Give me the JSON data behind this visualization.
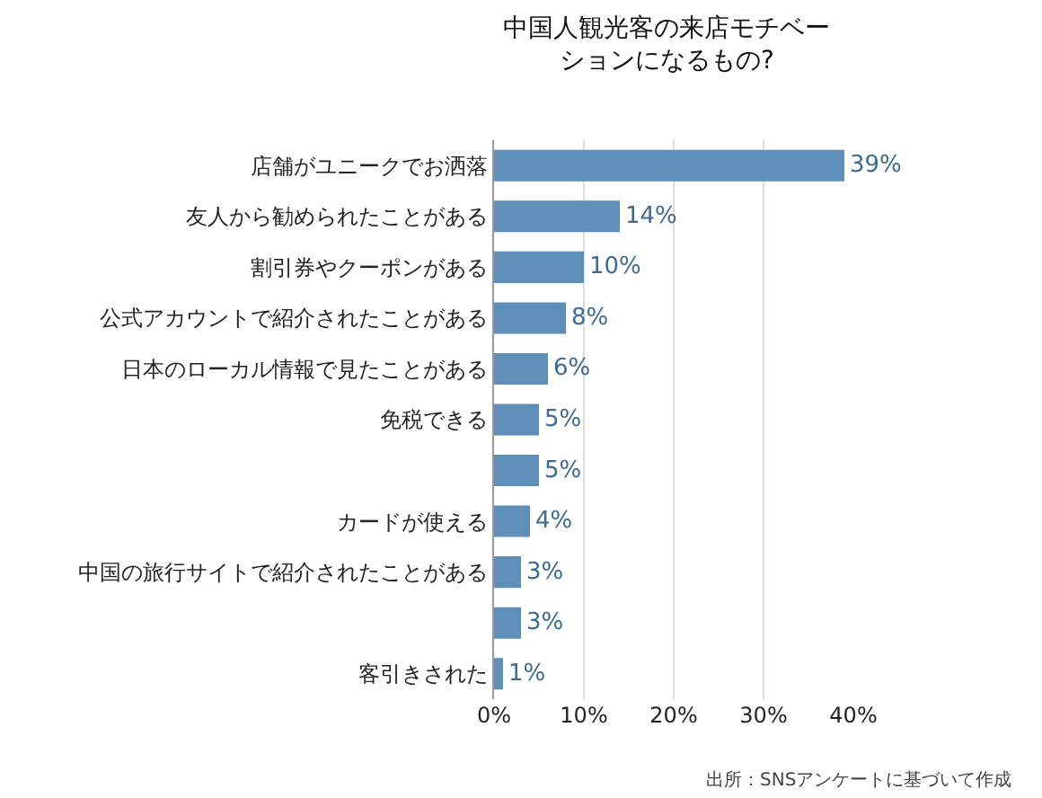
{
  "chart_data": {
    "type": "bar",
    "orientation": "horizontal",
    "title": "中国人観光客の来店モチベーションになるもの?",
    "categories": [
      "店舗がユニークでお洒落",
      "友人から勧められたことがある",
      "割引券やクーポンがある",
      "公式アカウントで紹介されたことがある",
      "日本のローカル情報で見たことがある",
      "免税できる",
      null,
      "カードが使える",
      "中国の旅行サイトで紹介されたことがある",
      null,
      "客引きされた"
    ],
    "values": [
      39,
      14,
      10,
      8,
      6,
      5,
      5,
      4,
      3,
      3,
      1
    ],
    "value_labels": [
      "39%",
      "14%",
      "10%",
      "8%",
      "6%",
      "5%",
      "5%",
      "4%",
      "3%",
      "3%",
      "1%"
    ],
    "color": "#5e8fb8",
    "xlim": [
      0,
      40
    ],
    "xticks": [
      {
        "value": 0,
        "label": "0%"
      },
      {
        "value": 10,
        "label": "10%"
      },
      {
        "value": 20,
        "label": "20%"
      },
      {
        "value": 30,
        "label": "30%"
      },
      {
        "value": 40,
        "label": "40%"
      }
    ],
    "grid": "x",
    "legend": false,
    "annotations": [
      "出所：SNSアンケートに基づいて作成"
    ]
  }
}
